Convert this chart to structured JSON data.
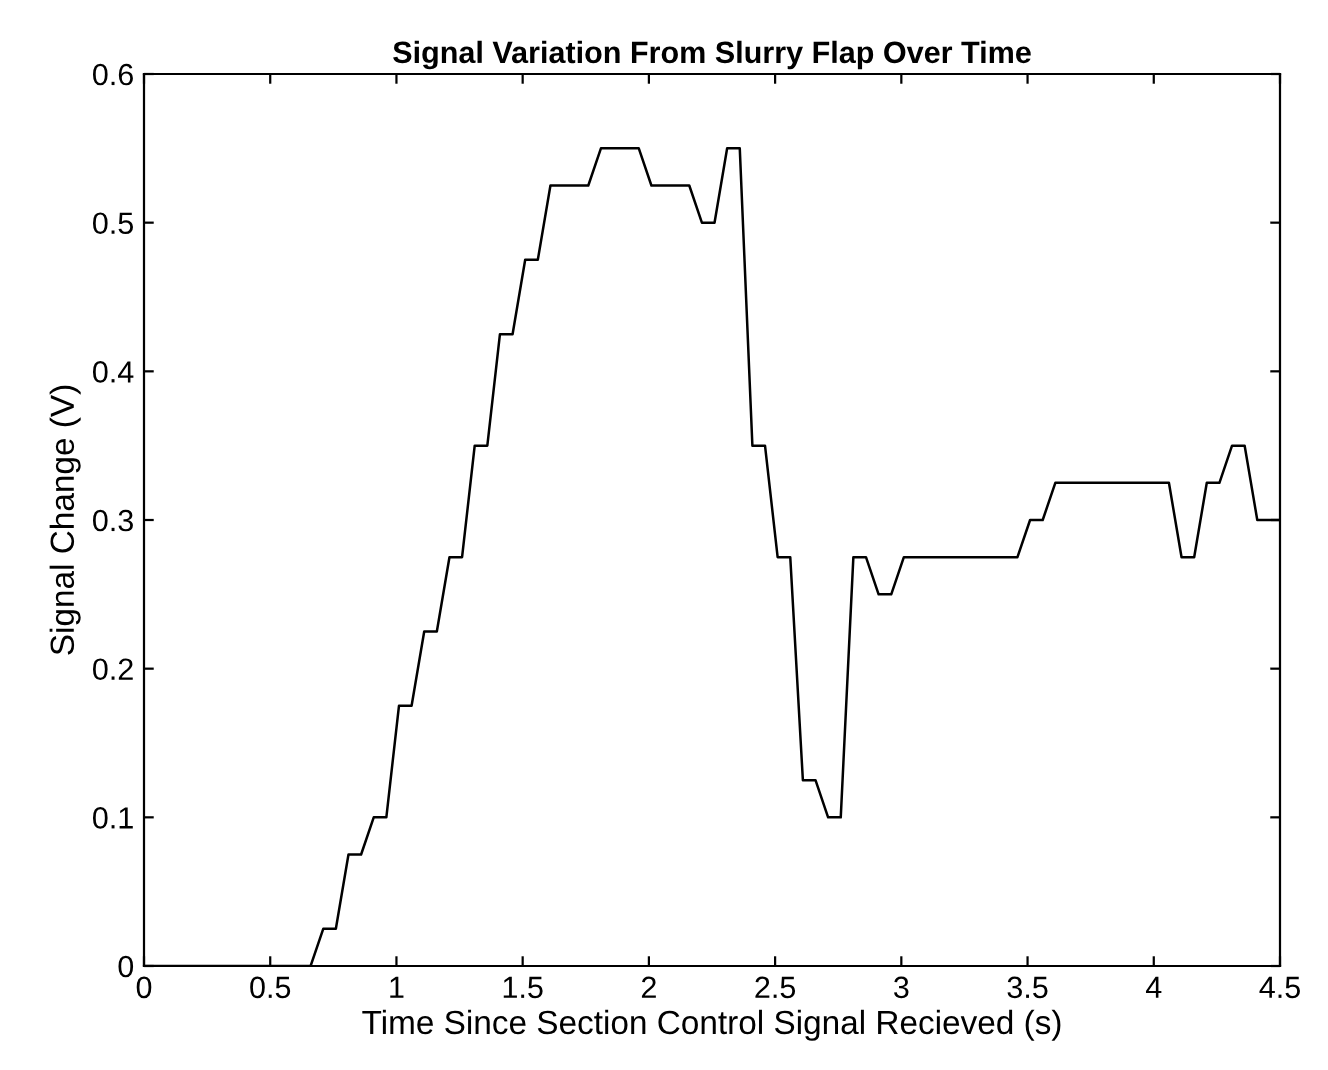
{
  "chart_data": {
    "type": "line",
    "title": "Signal Variation From Slurry Flap Over Time",
    "xlabel": "Time Since Section Control Signal Recieved (s)",
    "ylabel": "Signal Change (V)",
    "series": [
      {
        "color": "#000000",
        "x": [
          0,
          0.66,
          0.71,
          0.76,
          0.81,
          0.86,
          0.91,
          0.96,
          1.01,
          1.06,
          1.11,
          1.16,
          1.21,
          1.26,
          1.31,
          1.36,
          1.41,
          1.46,
          1.51,
          1.56,
          1.61,
          1.76,
          1.81,
          1.96,
          2.01,
          2.16,
          2.21,
          2.26,
          2.31,
          2.36,
          2.41,
          2.46,
          2.51,
          2.56,
          2.61,
          2.66,
          2.71,
          2.76,
          2.81,
          2.86,
          2.91,
          2.96,
          3.01,
          3.46,
          3.51,
          3.56,
          3.61,
          4.06,
          4.11,
          4.16,
          4.21,
          4.26,
          4.31,
          4.36,
          4.41,
          4.5
        ],
        "values": [
          0,
          0,
          0.025,
          0.025,
          0.075,
          0.075,
          0.1,
          0.1,
          0.175,
          0.175,
          0.225,
          0.225,
          0.275,
          0.275,
          0.35,
          0.35,
          0.425,
          0.425,
          0.475,
          0.475,
          0.525,
          0.525,
          0.55,
          0.55,
          0.525,
          0.525,
          0.5,
          0.5,
          0.55,
          0.55,
          0.35,
          0.35,
          0.275,
          0.275,
          0.125,
          0.125,
          0.1,
          0.1,
          0.275,
          0.275,
          0.25,
          0.25,
          0.275,
          0.275,
          0.3,
          0.3,
          0.325,
          0.325,
          0.275,
          0.275,
          0.325,
          0.325,
          0.35,
          0.35,
          0.3,
          0.3
        ]
      }
    ],
    "xlim": [
      0,
      4.5
    ],
    "ylim": [
      0,
      0.6
    ],
    "xticks": [
      0,
      0.5,
      1,
      1.5,
      2,
      2.5,
      3,
      3.5,
      4,
      4.5
    ],
    "yticks": [
      0,
      0.1,
      0.2,
      0.3,
      0.4,
      0.5,
      0.6
    ],
    "grid": false,
    "legend": false
  }
}
